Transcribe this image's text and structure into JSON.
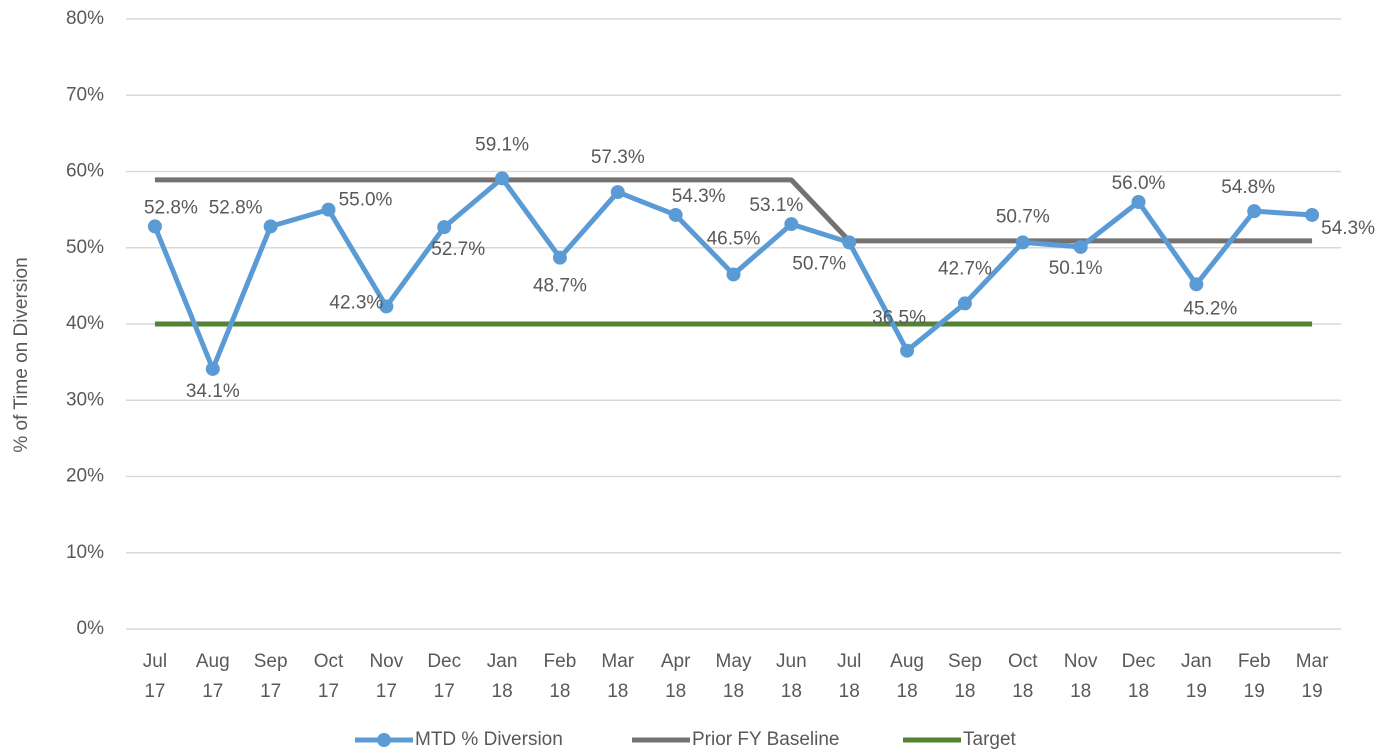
{
  "chart_data": {
    "type": "line",
    "y_label": "% of Time on Diversion",
    "categories": [
      [
        "Jul",
        "17"
      ],
      [
        "Aug",
        "17"
      ],
      [
        "Sep",
        "17"
      ],
      [
        "Oct",
        "17"
      ],
      [
        "Nov",
        "17"
      ],
      [
        "Dec",
        "17"
      ],
      [
        "Jan",
        "18"
      ],
      [
        "Feb",
        "18"
      ],
      [
        "Mar",
        "18"
      ],
      [
        "Apr",
        "18"
      ],
      [
        "May",
        "18"
      ],
      [
        "Jun",
        "18"
      ],
      [
        "Jul",
        "18"
      ],
      [
        "Aug",
        "18"
      ],
      [
        "Sep",
        "18"
      ],
      [
        "Oct",
        "18"
      ],
      [
        "Nov",
        "18"
      ],
      [
        "Dec",
        "18"
      ],
      [
        "Jan",
        "19"
      ],
      [
        "Feb",
        "19"
      ],
      [
        "Mar",
        "19"
      ]
    ],
    "series": [
      {
        "name": "MTD % Diversion",
        "color": "#5b9bd5",
        "marker": "circle",
        "values": [
          52.8,
          34.1,
          52.8,
          55.0,
          42.3,
          52.7,
          59.1,
          48.7,
          57.3,
          54.3,
          46.5,
          53.1,
          50.7,
          36.5,
          42.7,
          50.7,
          50.1,
          56.0,
          45.2,
          54.8,
          54.3
        ],
        "value_labels": [
          "52.8%",
          "34.1%",
          "52.8%",
          "55.0%",
          "42.3%",
          "52.7%",
          "59.1%",
          "48.7%",
          "57.3%",
          "54.3%",
          "46.5%",
          "53.1%",
          "50.7%",
          "36.5%",
          "42.7%",
          "50.7%",
          "50.1%",
          "56.0%",
          "45.2%",
          "54.8%",
          "54.3%"
        ]
      },
      {
        "name": "Prior FY Baseline",
        "color": "#767171",
        "values": [
          58.9,
          58.9,
          58.9,
          58.9,
          58.9,
          58.9,
          58.9,
          58.9,
          58.9,
          58.9,
          58.9,
          58.9,
          50.9,
          50.9,
          50.9,
          50.9,
          50.9,
          50.9,
          50.9,
          50.9,
          50.9
        ]
      },
      {
        "name": "Target",
        "color": "#548235",
        "values": [
          40,
          40,
          40,
          40,
          40,
          40,
          40,
          40,
          40,
          40,
          40,
          40,
          40,
          40,
          40,
          40,
          40,
          40,
          40,
          40,
          40
        ]
      }
    ],
    "ylim": [
      0,
      80
    ],
    "yticks": [
      {
        "value": 0,
        "label": "0%"
      },
      {
        "value": 10,
        "label": "10%"
      },
      {
        "value": 20,
        "label": "20%"
      },
      {
        "value": 30,
        "label": "30%"
      },
      {
        "value": 40,
        "label": "40%"
      },
      {
        "value": 50,
        "label": "50%"
      },
      {
        "value": 60,
        "label": "60%"
      },
      {
        "value": 70,
        "label": "70%"
      },
      {
        "value": 80,
        "label": "80%"
      }
    ],
    "grid": true,
    "legend": "bottom"
  }
}
